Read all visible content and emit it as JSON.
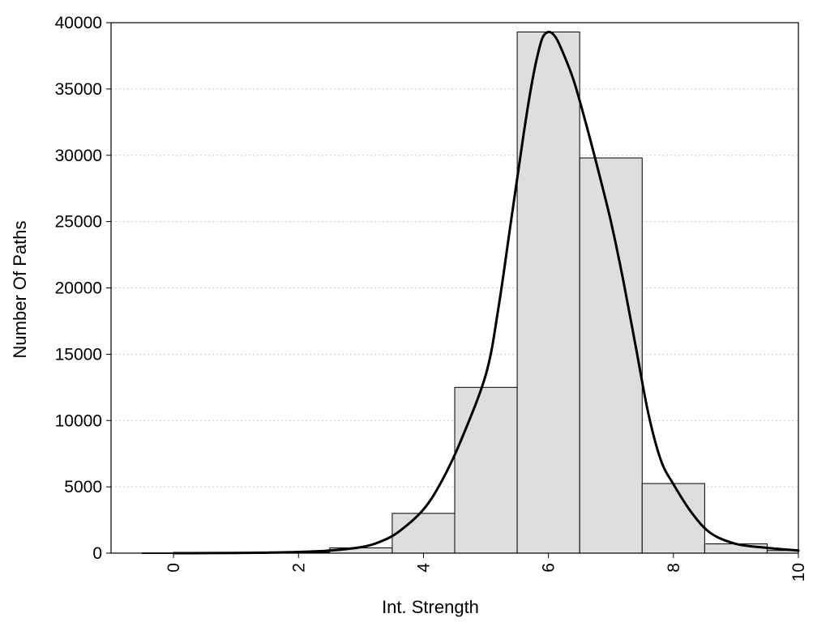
{
  "chart_data": {
    "type": "bar",
    "title": "",
    "xlabel": "Int. Strength",
    "ylabel": "Number Of Paths",
    "xlim": [
      -1,
      10
    ],
    "ylim": [
      0,
      40000
    ],
    "x_ticks": [
      "0",
      "2",
      "4",
      "6",
      "8",
      "10"
    ],
    "y_ticks": [
      "0",
      "5000",
      "10000",
      "15000",
      "20000",
      "25000",
      "30000",
      "35000",
      "40000"
    ],
    "grid": "horizontal dotted",
    "bar_width": 1,
    "bars": {
      "x": [
        0,
        1,
        2,
        3,
        4,
        5,
        6,
        7,
        8,
        9,
        10
      ],
      "values": [
        20,
        20,
        60,
        400,
        3000,
        12500,
        39300,
        29800,
        5250,
        700,
        200
      ]
    },
    "density_curve": {
      "x": [
        0,
        0.5,
        1,
        1.5,
        2,
        2.5,
        3,
        3.3,
        3.6,
        4,
        4.3,
        4.6,
        5,
        5.2,
        5.4,
        5.6,
        5.7,
        5.8,
        5.9,
        6,
        6.1,
        6.2,
        6.4,
        6.6,
        6.8,
        7,
        7.2,
        7.4,
        7.6,
        7.8,
        8,
        8.3,
        8.6,
        9,
        9.5,
        10
      ],
      "y": [
        0,
        5,
        15,
        40,
        90,
        200,
        450,
        850,
        1600,
        3300,
        5500,
        8500,
        13500,
        18500,
        25000,
        31500,
        34500,
        37000,
        38800,
        39300,
        39000,
        38100,
        35700,
        32400,
        28800,
        25000,
        20500,
        15500,
        10500,
        7000,
        5200,
        3000,
        1500,
        700,
        400,
        200
      ]
    },
    "colors": {
      "bar_fill": "#dedede",
      "bar_stroke": "#000000",
      "curve": "#000000",
      "grid": "#c8c8c8"
    }
  }
}
